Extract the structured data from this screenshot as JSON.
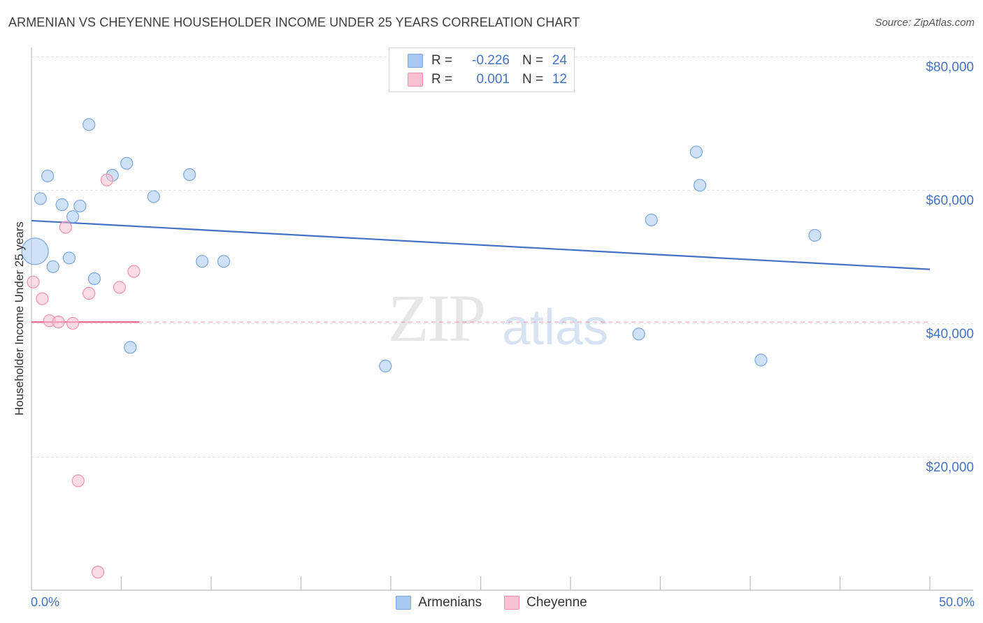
{
  "title": "ARMENIAN VS CHEYENNE HOUSEHOLDER INCOME UNDER 25 YEARS CORRELATION CHART",
  "source": "Source: ZipAtlas.com",
  "watermark": {
    "zip": "ZIP",
    "atlas": "atlas"
  },
  "legend": {
    "rows": [
      {
        "r_label": "R =",
        "r_value": "-0.226",
        "n_label": "N =",
        "n_value": "24",
        "color": "#a8c8f0",
        "border": "#7aa7e0"
      },
      {
        "r_label": "R =",
        "r_value": "0.001",
        "n_label": "N =",
        "n_value": "12",
        "color": "#f8c0d0",
        "border": "#f090ac"
      }
    ]
  },
  "bottom_legend": [
    {
      "label": "Armenians",
      "color": "#a8c8f0",
      "border": "#7aa7e0"
    },
    {
      "label": "Cheyenne",
      "color": "#f8c0d0",
      "border": "#f090ac"
    }
  ],
  "chart_data": {
    "type": "scatter",
    "title": "ARMENIAN VS CHEYENNE HOUSEHOLDER INCOME UNDER 25 YEARS CORRELATION CHART",
    "xlabel": "",
    "ylabel": "Householder Income Under 25 years",
    "xlim": [
      0,
      50
    ],
    "ylim": [
      0,
      80000
    ],
    "x_tick_labels": [
      "0.0%",
      "50.0%"
    ],
    "y_tick_values": [
      20000,
      40000,
      60000,
      80000
    ],
    "y_tick_labels": [
      "$20,000",
      "$40,000",
      "$60,000",
      "$80,000"
    ],
    "grid": true,
    "series": [
      {
        "name": "Armenians",
        "color": "#4472c4",
        "fill": "#a8c8f0",
        "points": [
          {
            "x": 0.2,
            "y": 50800,
            "big": true
          },
          {
            "x": 0.5,
            "y": 58700
          },
          {
            "x": 0.9,
            "y": 62100
          },
          {
            "x": 1.2,
            "y": 48500
          },
          {
            "x": 1.7,
            "y": 57800
          },
          {
            "x": 2.1,
            "y": 49800
          },
          {
            "x": 2.3,
            "y": 56000
          },
          {
            "x": 2.7,
            "y": 57600
          },
          {
            "x": 3.2,
            "y": 69800
          },
          {
            "x": 3.5,
            "y": 46700
          },
          {
            "x": 4.5,
            "y": 62200
          },
          {
            "x": 5.3,
            "y": 64000
          },
          {
            "x": 5.5,
            "y": 36400
          },
          {
            "x": 6.8,
            "y": 59000
          },
          {
            "x": 8.8,
            "y": 62300
          },
          {
            "x": 9.5,
            "y": 49300
          },
          {
            "x": 10.7,
            "y": 49300
          },
          {
            "x": 19.7,
            "y": 33600
          },
          {
            "x": 33.8,
            "y": 38400
          },
          {
            "x": 34.5,
            "y": 55500
          },
          {
            "x": 37.0,
            "y": 65700
          },
          {
            "x": 37.2,
            "y": 60700
          },
          {
            "x": 40.6,
            "y": 34500
          },
          {
            "x": 43.6,
            "y": 53200
          }
        ],
        "trend": {
          "x1": 0,
          "y1": 55400,
          "x2": 50,
          "y2": 48100,
          "style": "solid"
        }
      },
      {
        "name": "Cheyenne",
        "color": "#e86c8e",
        "fill": "#f8c0d0",
        "points": [
          {
            "x": 0.1,
            "y": 46200
          },
          {
            "x": 0.6,
            "y": 43700
          },
          {
            "x": 1.0,
            "y": 40400
          },
          {
            "x": 1.5,
            "y": 40200
          },
          {
            "x": 1.9,
            "y": 54400
          },
          {
            "x": 2.3,
            "y": 40000
          },
          {
            "x": 2.6,
            "y": 16400
          },
          {
            "x": 3.2,
            "y": 44500
          },
          {
            "x": 3.7,
            "y": 2700
          },
          {
            "x": 4.2,
            "y": 61500
          },
          {
            "x": 4.9,
            "y": 45400
          },
          {
            "x": 5.7,
            "y": 47800
          }
        ],
        "trend": {
          "x1": 0,
          "y1": 40200,
          "x2": 6.0,
          "y2": 40200,
          "style": "solid",
          "extend_to": 50,
          "extend_style": "dashed"
        }
      }
    ]
  }
}
